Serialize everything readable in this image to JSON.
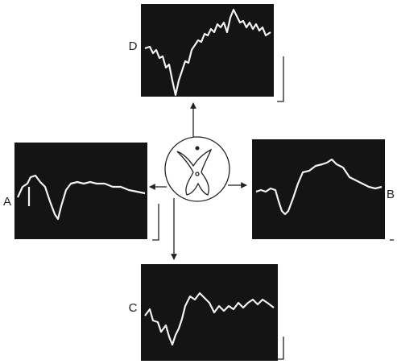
{
  "panels": [
    {
      "label": "D"
    },
    {
      "label": "A"
    },
    {
      "label": "B"
    },
    {
      "label": "C"
    }
  ]
}
